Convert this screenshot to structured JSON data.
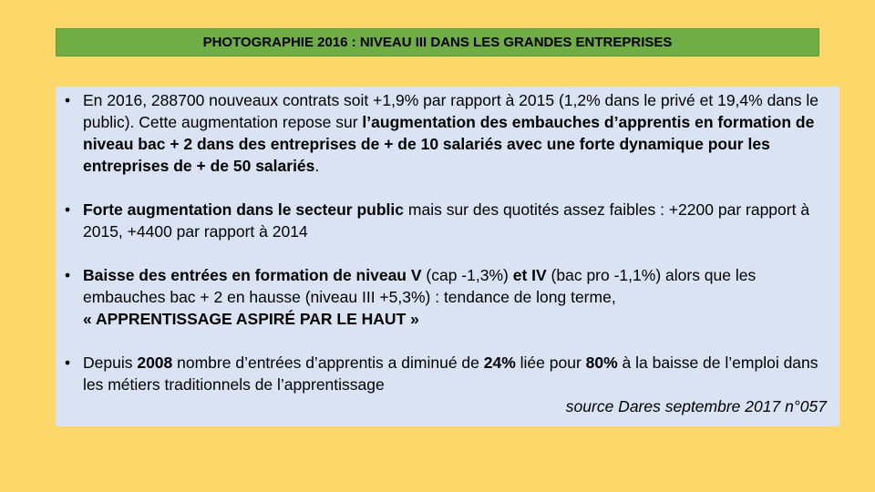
{
  "title": "PHOTOGRAPHIE 2016 : NIVEAU III DANS LES GRANDES ENTREPRISES",
  "bullet_glyph": "•",
  "bullets": [
    {
      "segments": [
        {
          "text": "En 2016, 288700 nouveaux contrats soit +1,9% par rapport à 2015 (1,2% dans le privé et 19,4% dans le public). Cette augmentation repose sur ",
          "bold": false
        },
        {
          "text": "l’augmentation des embauches d’apprentis en formation de niveau bac + 2 dans des entreprises de + de 10 salariés avec une forte dynamique pour les entreprises de + de 50 salariés",
          "bold": true
        },
        {
          "text": ".",
          "bold": false
        }
      ]
    },
    {
      "segments": [
        {
          "text": "Forte augmentation dans le secteur public",
          "bold": true
        },
        {
          "text": " mais sur des quotités assez faibles : +2200 par rapport à 2015, +4400 par rapport à 2014",
          "bold": false
        }
      ]
    },
    {
      "segments": [
        {
          "text": "Baisse des entrées en formation de niveau V",
          "bold": true
        },
        {
          "text": " (cap -1,3%) ",
          "bold": false
        },
        {
          "text": "et IV",
          "bold": true
        },
        {
          "text": " (bac pro -1,1%) alors que les embauches bac + 2 en hausse (niveau III +5,3%) : tendance de long terme, ",
          "bold": false
        },
        {
          "text": "« APPRENTISSAGE ASPIRÉ PAR LE HAUT »",
          "bold": true,
          "block": true
        }
      ]
    },
    {
      "segments": [
        {
          "text": "Depuis ",
          "bold": false
        },
        {
          "text": "2008",
          "bold": true
        },
        {
          "text": " nombre d’entrées d’apprentis a diminué de ",
          "bold": false
        },
        {
          "text": "24%",
          "bold": true
        },
        {
          "text": " liée  pour ",
          "bold": false
        },
        {
          "text": "80%",
          "bold": true
        },
        {
          "text": " à la baisse de l’emploi dans les métiers traditionnels de l’apprentissage",
          "bold": false
        }
      ],
      "source": "source Dares septembre 2017 n°057"
    }
  ]
}
